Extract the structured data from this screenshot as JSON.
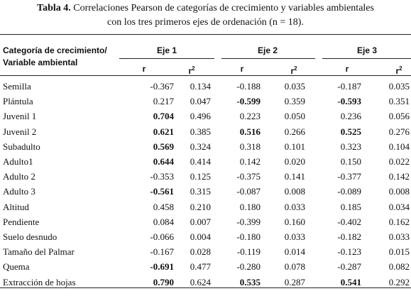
{
  "header": {
    "label": "Tabla 4.",
    "title_line1": "Correlaciones Pearson de categorías de crecimiento y variables ambientales",
    "title_line2": "con los tres primeros ejes de ordenación (n = 18)."
  },
  "table": {
    "row_header": [
      "Categoría de crecimiento/",
      "Variable ambiental"
    ],
    "groups": [
      "Eje 1",
      "Eje 2",
      "Eje 3"
    ],
    "subheaders": [
      [
        "r",
        "2"
      ],
      [
        "r",
        "2"
      ],
      [
        "r",
        "2"
      ],
      [
        "r",
        "2"
      ],
      [
        "r",
        "2"
      ],
      [
        "r",
        "2"
      ]
    ],
    "rows": [
      {
        "label": "Semilla",
        "cells": [
          "-0.367",
          "0.134",
          "-0.188",
          "0.035",
          "-0.187",
          "0.035"
        ],
        "bold": []
      },
      {
        "label": "Plántula",
        "cells": [
          "0.217",
          "0.047",
          "-0.599",
          "0.359",
          "-0.593",
          "0.351"
        ],
        "bold": [
          2,
          4
        ]
      },
      {
        "label": "Juvenil 1",
        "cells": [
          "0.704",
          "0.496",
          "0.223",
          "0.050",
          "0.236",
          "0.056"
        ],
        "bold": [
          0
        ]
      },
      {
        "label": "Juvenil 2",
        "cells": [
          "0.621",
          "0.385",
          "0.516",
          "0.266",
          "0.525",
          "0.276"
        ],
        "bold": [
          0,
          2,
          4
        ]
      },
      {
        "label": "Subadulto",
        "cells": [
          "0.569",
          "0.324",
          "0.318",
          "0.101",
          "0.323",
          "0.104"
        ],
        "bold": [
          0
        ]
      },
      {
        "label": "Adulto1",
        "cells": [
          "0.644",
          "0.414",
          "0.142",
          "0.020",
          "0.150",
          "0.022"
        ],
        "bold": [
          0
        ]
      },
      {
        "label": "Adulto 2",
        "cells": [
          "-0.353",
          "0.125",
          "-0.375",
          "0.141",
          "-0.377",
          "0.142"
        ],
        "bold": []
      },
      {
        "label": "Adulto 3",
        "cells": [
          "-0.561",
          "0.315",
          "-0.087",
          "0.008",
          "-0.089",
          "0.008"
        ],
        "bold": [
          0
        ]
      },
      {
        "label": "Altitud",
        "cells": [
          "0.458",
          "0.210",
          "0.180",
          "0.033",
          "0.185",
          "0.034"
        ],
        "bold": []
      },
      {
        "label": "Pendiente",
        "cells": [
          "0.084",
          "0.007",
          "-0.399",
          "0.160",
          "-0.402",
          "0.162"
        ],
        "bold": []
      },
      {
        "label": "Suelo desnudo",
        "cells": [
          "-0.066",
          "0.004",
          "-0.180",
          "0.033",
          "-0.182",
          "0.033"
        ],
        "bold": []
      },
      {
        "label": "Tamaño del Palmar",
        "cells": [
          "-0.167",
          "0.028",
          "-0.119",
          "0.014",
          "-0.123",
          "0.015"
        ],
        "bold": []
      },
      {
        "label": "Quema",
        "cells": [
          "-0.691",
          "0.477",
          "-0.280",
          "0.078",
          "-0.287",
          "0.082"
        ],
        "bold": [
          0
        ]
      },
      {
        "label": "Extracción de hojas",
        "cells": [
          "0.790",
          "0.624",
          "0.535",
          "0.287",
          "0.541",
          "0.292"
        ],
        "bold": [
          0,
          2,
          4
        ]
      }
    ]
  }
}
